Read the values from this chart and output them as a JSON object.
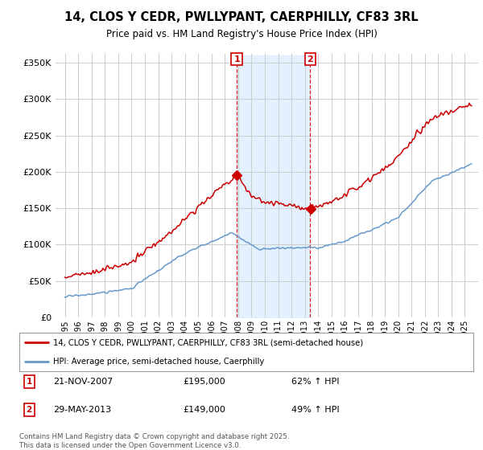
{
  "title": "14, CLOS Y CEDR, PWLLYPANT, CAERPHILLY, CF83 3RL",
  "subtitle": "Price paid vs. HM Land Registry's House Price Index (HPI)",
  "ylabel_ticks": [
    "£0",
    "£50K",
    "£100K",
    "£150K",
    "£200K",
    "£250K",
    "£300K",
    "£350K"
  ],
  "ytick_values": [
    0,
    50000,
    100000,
    150000,
    200000,
    250000,
    300000,
    350000
  ],
  "ylim": [
    0,
    360000
  ],
  "sale1_date": "21-NOV-2007",
  "sale1_price": 195000,
  "sale1_hpi_pct": "62%",
  "sale2_date": "29-MAY-2013",
  "sale2_price": 149000,
  "sale2_hpi_pct": "49%",
  "sale1_x": 2007.89,
  "sale2_x": 2013.41,
  "legend_line1": "14, CLOS Y CEDR, PWLLYPANT, CAERPHILLY, CF83 3RL (semi-detached house)",
  "legend_line2": "HPI: Average price, semi-detached house, Caerphilly",
  "footnote": "Contains HM Land Registry data © Crown copyright and database right 2025.\nThis data is licensed under the Open Government Licence v3.0.",
  "red_color": "#cc0000",
  "blue_color": "#6699cc",
  "shade_color": "#ddeeff",
  "grid_color": "#cccccc",
  "background_color": "#ffffff",
  "xstart": 1995,
  "xend": 2025
}
